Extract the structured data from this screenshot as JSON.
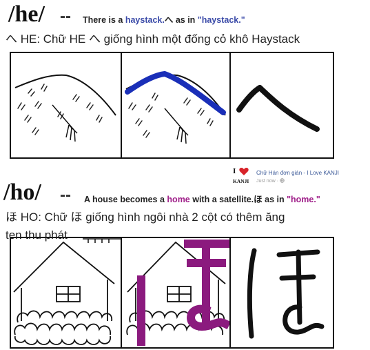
{
  "he": {
    "romaji": "/he/",
    "dashes": "--",
    "sentence_pre": "There is a ",
    "sentence_word": "haystack.",
    "sentence_kana": "へ",
    "sentence_mid": " as in ",
    "sentence_quote": "\"haystack.\"",
    "viet_line": "へ HE:   Chữ HE   へ giống hình một đống cỏ khô Haystack",
    "accent_color": "#1a2fb8"
  },
  "ho": {
    "romaji": "/ho/",
    "dashes": "--",
    "sentence_pre": "A house becomes a ",
    "sentence_word": "home",
    "sentence_mid1": " with a satellite.",
    "sentence_kana": "ほ",
    "sentence_mid2": " as in ",
    "sentence_quote": "\"home.\"",
    "viet_line1": "ほ HO:   Chữ ほ giống hình ngôi nhà 2 cột có thêm ăng",
    "viet_line2": "ten thu phát",
    "accent_color": "#8b1a7e"
  },
  "page_badge": {
    "brand_top": "I",
    "brand_bottom": "KANJI",
    "page_name": "Chữ Hán đơn gián - I Love KANJI",
    "time": "Just now · ",
    "heart_icon": "heart-icon",
    "globe_icon": "globe-icon"
  }
}
